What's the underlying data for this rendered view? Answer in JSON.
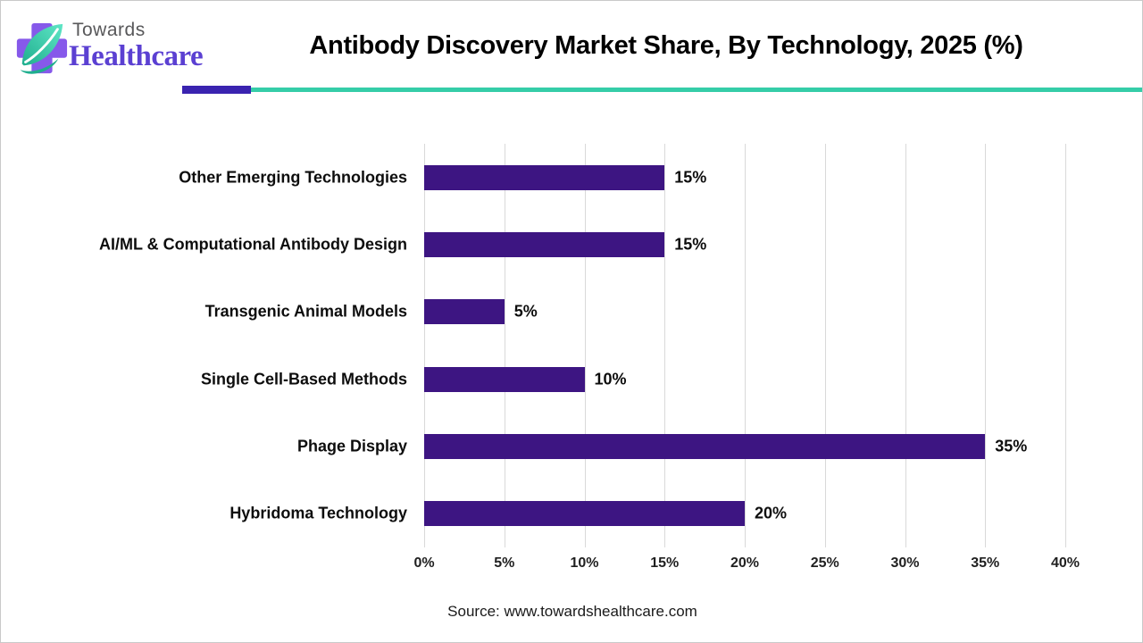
{
  "header": {
    "logo": {
      "icon": "medical-cross-leaf-icon",
      "line1": "Towards",
      "line2": "Healthcare",
      "line1_color": "#58585a",
      "line2_color": "#5b40d2",
      "cross_color": "#8659ea",
      "leaf_color_light": "#5fe6c6",
      "leaf_color_dark": "#1fae8e"
    },
    "title": "Antibody Discovery Market Share, By Technology, 2025 (%)"
  },
  "divider": {
    "accent_color": "#3a23b0",
    "line_color": "#35cda8"
  },
  "chart_data": {
    "type": "bar",
    "orientation": "horizontal",
    "title": "Antibody Discovery Market Share, By Technology, 2025 (%)",
    "categories": [
      "Other Emerging Technologies",
      "AI/ML & Computational Antibody Design",
      "Transgenic Animal Models",
      "Single Cell-Based Methods",
      "Phage Display",
      "Hybridoma Technology"
    ],
    "values": [
      15,
      15,
      5,
      10,
      35,
      20
    ],
    "value_labels": [
      "15%",
      "15%",
      "5%",
      "10%",
      "35%",
      "20%"
    ],
    "xlabel": "",
    "ylabel": "",
    "xlim": [
      0,
      40
    ],
    "x_ticks": [
      "0%",
      "5%",
      "10%",
      "15%",
      "20%",
      "25%",
      "30%",
      "35%",
      "40%"
    ],
    "grid": true,
    "gridline_color": "#d9d9d9",
    "bar_color": "#3d1582",
    "legend": "none"
  },
  "footer": {
    "source": "Source: www.towardshealthcare.com"
  }
}
